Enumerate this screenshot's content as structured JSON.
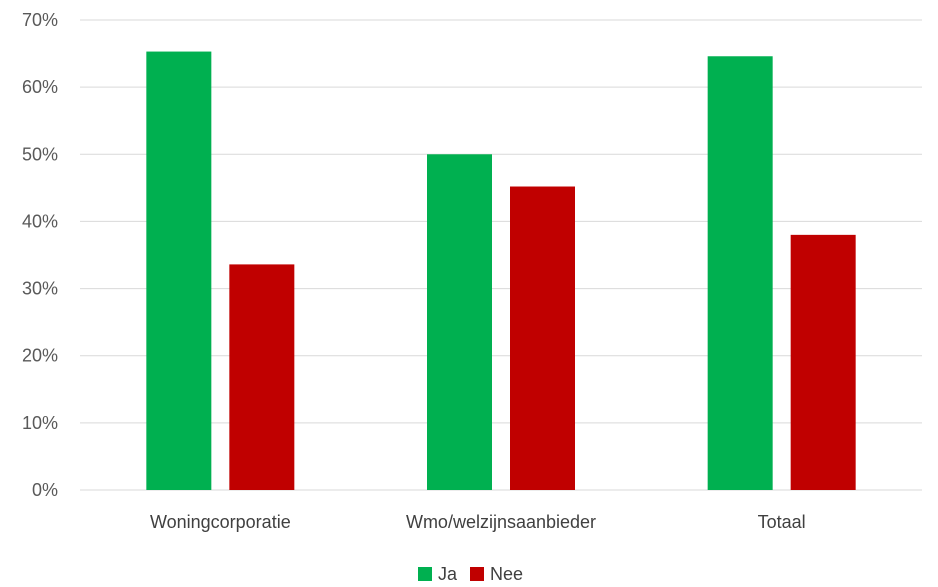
{
  "chart_data": {
    "type": "bar",
    "categories": [
      "Woningcorporatie",
      "Wmo/welzijnsaanbieder",
      "Totaal"
    ],
    "series": [
      {
        "name": "Ja",
        "values": [
          65.3,
          50.0,
          64.6
        ],
        "color": "#00b050"
      },
      {
        "name": "Nee",
        "values": [
          33.6,
          45.2,
          38.0
        ],
        "color": "#c00000"
      }
    ],
    "y_ticks": [
      "0%",
      "10%",
      "20%",
      "30%",
      "40%",
      "50%",
      "60%",
      "70%"
    ],
    "ylim": [
      0,
      70
    ],
    "grid": true,
    "legend_position": "bottom"
  }
}
